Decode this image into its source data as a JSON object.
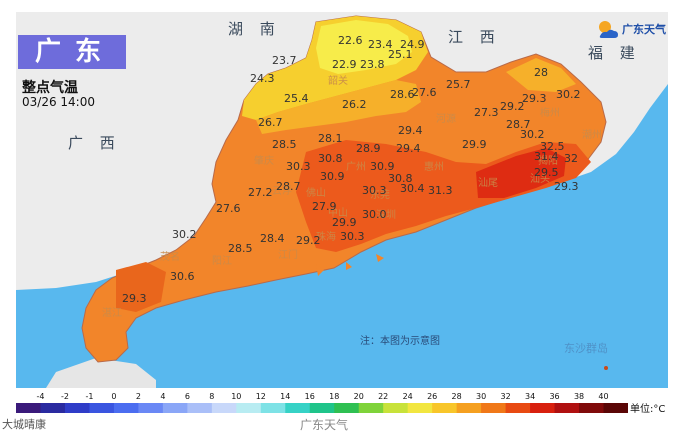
{
  "header": {
    "region": "广东",
    "subtitle": "整点气温",
    "timestamp": "03/26 14:00"
  },
  "logo": {
    "text": "广东天气",
    "icon": "sun-cloud-icon"
  },
  "neighbors": {
    "hunan": "湖 南",
    "jiangxi": "江 西",
    "fujian": "福 建",
    "guangxi": "广 西"
  },
  "note": "注：本图为示意图",
  "islands_label": "东沙群岛",
  "cities": [
    "韶关",
    "河源",
    "肇庆",
    "广州",
    "惠州",
    "梅州",
    "潮州",
    "汕尾",
    "汕头",
    "揭阳",
    "佛山",
    "东莞",
    "深圳",
    "中山",
    "珠海",
    "江门",
    "阳江",
    "茂名",
    "湛江",
    "云浮"
  ],
  "readings": [
    {
      "v": "22.6"
    },
    {
      "v": "23.4"
    },
    {
      "v": "24.9"
    },
    {
      "v": "25.1"
    },
    {
      "v": "23.7"
    },
    {
      "v": "22.9"
    },
    {
      "v": "23.8"
    },
    {
      "v": "24.3"
    },
    {
      "v": "25.4"
    },
    {
      "v": "26.2"
    },
    {
      "v": "28.6"
    },
    {
      "v": "27.6"
    },
    {
      "v": "25.7"
    },
    {
      "v": "28"
    },
    {
      "v": "26.7"
    },
    {
      "v": "28.1"
    },
    {
      "v": "29.4"
    },
    {
      "v": "27.3"
    },
    {
      "v": "29.2"
    },
    {
      "v": "29.3"
    },
    {
      "v": "30.2"
    },
    {
      "v": "28.5"
    },
    {
      "v": "30.8"
    },
    {
      "v": "29.9"
    },
    {
      "v": "28.7"
    },
    {
      "v": "30.2"
    },
    {
      "v": "30.3"
    },
    {
      "v": "28.9"
    },
    {
      "v": "29.4"
    },
    {
      "v": "32.5"
    },
    {
      "v": "30.9"
    },
    {
      "v": "30.8"
    },
    {
      "v": "30.4"
    },
    {
      "v": "31.3"
    },
    {
      "v": "32"
    },
    {
      "v": "27.2"
    },
    {
      "v": "28.7"
    },
    {
      "v": "30.9"
    },
    {
      "v": "30.3"
    },
    {
      "v": "29.5"
    },
    {
      "v": "27.6"
    },
    {
      "v": "27.9"
    },
    {
      "v": "29.9"
    },
    {
      "v": "29.3"
    },
    {
      "v": "30.3"
    },
    {
      "v": "30.2"
    },
    {
      "v": "28.5"
    },
    {
      "v": "28.4"
    },
    {
      "v": "29.2"
    },
    {
      "v": "30.6"
    },
    {
      "v": "29.3"
    },
    {
      "v": "30.0"
    },
    {
      "v": "31.4"
    }
  ],
  "legend": {
    "ticks": [
      "-4",
      "-2",
      "-1",
      "0",
      "2",
      "4",
      "6",
      "8",
      "10",
      "12",
      "14",
      "16",
      "18",
      "20",
      "22",
      "24",
      "26",
      "28",
      "30",
      "32",
      "34",
      "36",
      "38",
      "40"
    ],
    "colors": [
      "#3a1a7a",
      "#2a2aa0",
      "#2f3cc8",
      "#3a55e0",
      "#4b6df0",
      "#6a88f5",
      "#8aa6f7",
      "#aabff8",
      "#c8d8fa",
      "#b8ecf2",
      "#7ee2e6",
      "#36d2c6",
      "#1fc48a",
      "#2fc052",
      "#7fd33a",
      "#c8e23a",
      "#f2e640",
      "#f8c62a",
      "#f5a020",
      "#f07818",
      "#e84a12",
      "#d8200e",
      "#b01010",
      "#800a0a",
      "#5a0606"
    ],
    "unit": "单位:°C"
  },
  "footer": {
    "left": "大城晴康",
    "mid": "广东天气"
  },
  "colors": {
    "sea": "#58b8ee",
    "land_neighbor": "#ececec",
    "badge": "#6e6cdb"
  }
}
